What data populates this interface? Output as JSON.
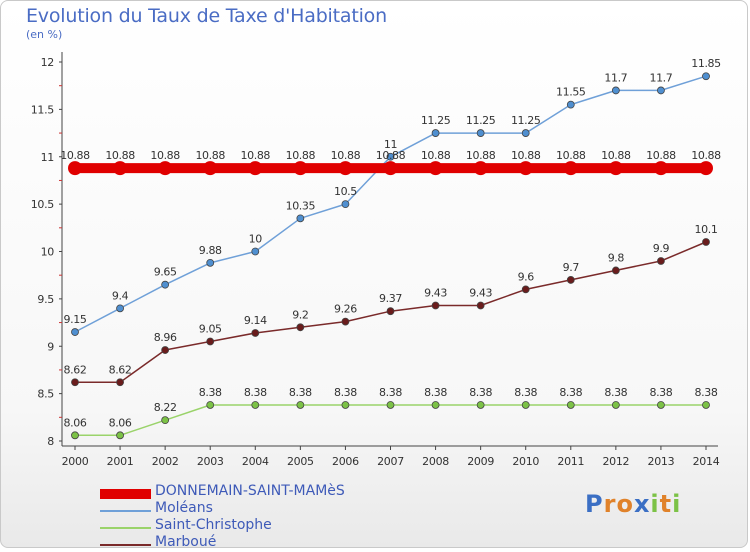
{
  "chart_data": {
    "type": "line",
    "title": "Evolution du Taux de Taxe d'Habitation",
    "subtitle": "(en %)",
    "x": [
      "2000",
      "2001",
      "2002",
      "2003",
      "2004",
      "2005",
      "2006",
      "2007",
      "2008",
      "2009",
      "2010",
      "2011",
      "2012",
      "2013",
      "2014"
    ],
    "ylim": [
      8,
      12
    ],
    "yticks": [
      "8",
      "8.5",
      "9",
      "9.5",
      "10",
      "10.5",
      "11",
      "11.5",
      "12"
    ],
    "grid": false,
    "legend_position": "bottom-left",
    "series": [
      {
        "name": "Moléans",
        "color": "#6fa0d8",
        "marker": "#4f8fd0",
        "values": [
          9.15,
          9.4,
          9.65,
          9.88,
          10,
          10.35,
          10.5,
          11,
          11.25,
          11.25,
          11.25,
          11.55,
          11.7,
          11.7,
          11.85
        ],
        "labels": [
          "9.15",
          "9.4",
          "9.65",
          "9.88",
          "10",
          "10.35",
          "10.5",
          "11",
          "11.25",
          "11.25",
          "11.25",
          "11.55",
          "11.7",
          "11.7",
          "11.85"
        ]
      },
      {
        "name": "Saint-Christophe",
        "color": "#9ad36a",
        "marker": "#7cc246",
        "values": [
          8.06,
          8.06,
          8.22,
          8.38,
          8.38,
          8.38,
          8.38,
          8.38,
          8.38,
          8.38,
          8.38,
          8.38,
          8.38,
          8.38,
          8.38
        ],
        "labels": [
          "8.06",
          "8.06",
          "8.22",
          "8.38",
          "8.38",
          "8.38",
          "8.38",
          "8.38",
          "8.38",
          "8.38",
          "8.38",
          "8.38",
          "8.38",
          "8.38",
          "8.38"
        ]
      },
      {
        "name": "Marboué",
        "color": "#7a2a2a",
        "marker": "#6a1c1c",
        "values": [
          8.62,
          8.62,
          8.96,
          9.05,
          9.14,
          9.2,
          9.26,
          9.37,
          9.43,
          9.43,
          9.6,
          9.7,
          9.8,
          9.9,
          10.1
        ],
        "labels": [
          "8.62",
          "8.62",
          "8.96",
          "9.05",
          "9.14",
          "9.2",
          "9.26",
          "9.37",
          "9.43",
          "9.43",
          "9.6",
          "9.7",
          "9.8",
          "9.9",
          "10.1"
        ]
      },
      {
        "name": "DONNEMAIN-SAINT-MAMèS",
        "color": "#e00000",
        "marker": "#e00000",
        "thick": true,
        "values": [
          10.88,
          10.88,
          10.88,
          10.88,
          10.88,
          10.88,
          10.88,
          10.88,
          10.88,
          10.88,
          10.88,
          10.88,
          10.88,
          10.88,
          10.88
        ],
        "labels": [
          "10.88",
          "10.88",
          "10.88",
          "10.88",
          "10.88",
          "10.88",
          "10.88",
          "10.88",
          "10.88",
          "10.88",
          "10.88",
          "10.88",
          "10.88",
          "10.88",
          "10.88"
        ]
      }
    ]
  },
  "legend": [
    {
      "label": "DONNEMAIN-SAINT-MAMèS",
      "color": "#e00000",
      "thick": true
    },
    {
      "label": "Moléans",
      "color": "#6fa0d8"
    },
    {
      "label": "Saint-Christophe",
      "color": "#9ad36a"
    },
    {
      "label": "Marboué",
      "color": "#7a2a2a"
    }
  ],
  "logo": {
    "letters": [
      "P",
      "r",
      "o",
      "x",
      "i",
      "t",
      "i"
    ],
    "colors": [
      "#3b6fc4",
      "#e0822a",
      "#e0822a",
      "#3b6fc4",
      "#7cc246",
      "#e0822a",
      "#7cc246"
    ]
  }
}
